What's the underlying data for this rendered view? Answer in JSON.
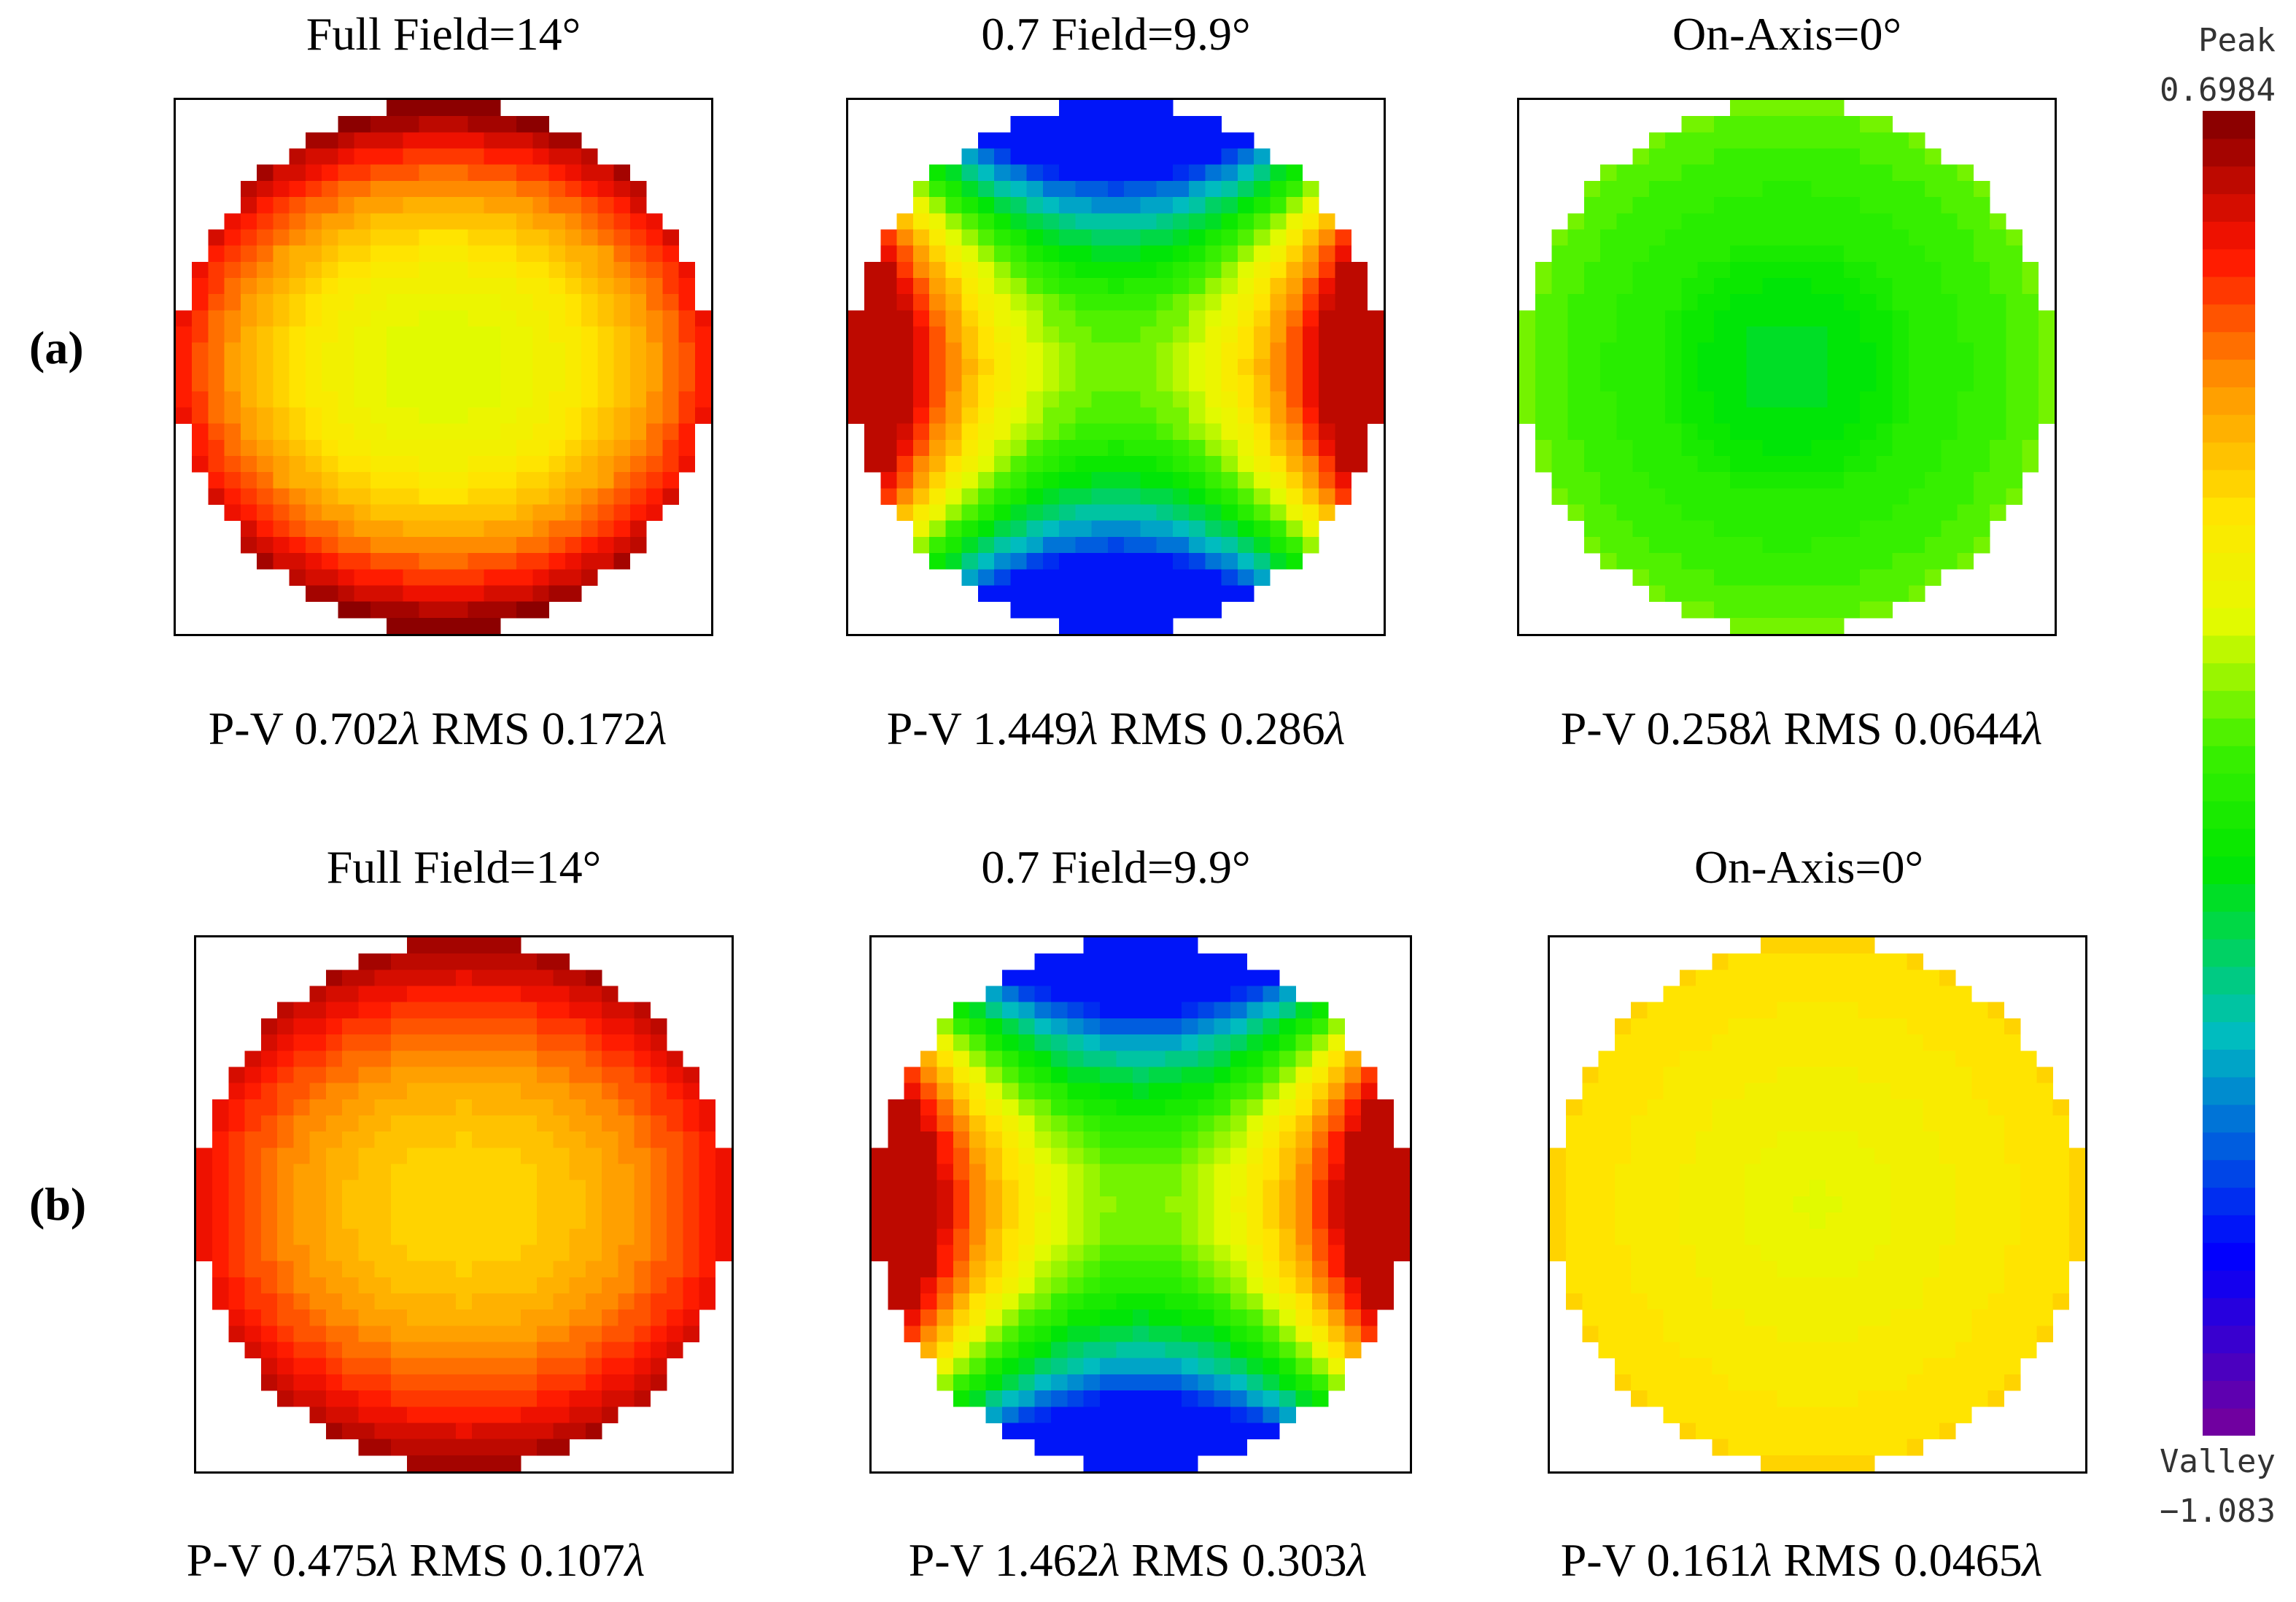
{
  "chart_data": {
    "type": "heatmap",
    "description_units": "wavefront error in waves",
    "colorbar": {
      "peak_label": "Peak",
      "peak_value": "0.6984",
      "valley_label": "Valley",
      "valley_value": "−1.083",
      "range": [
        -1.083,
        0.6984
      ]
    },
    "rows": [
      {
        "label": "(a)",
        "panels": [
          {
            "title": "Full Field=14°",
            "pv_label": "P-V",
            "pv": "0.702",
            "rms_label": "RMS",
            "rms": "0.172",
            "unit": "λ",
            "pattern": "full",
            "peak_wave": 0.702,
            "min_wave": 0.0
          },
          {
            "title": "0.7 Field=9.9°",
            "pv_label": "P-V",
            "pv": "1.449",
            "rms_label": "RMS",
            "rms": "0.286",
            "unit": "λ",
            "pattern": "mid",
            "peak_wave": 0.6,
            "min_wave": -0.849
          },
          {
            "title": "On-Axis=0°",
            "pv_label": "P-V",
            "pv": "0.258",
            "rms_label": "RMS",
            "rms": "0.0644",
            "unit": "λ",
            "pattern": "axis",
            "peak_wave": -0.1,
            "min_wave": -0.358
          }
        ]
      },
      {
        "label": "(b)",
        "panels": [
          {
            "title": "Full Field=14°",
            "pv_label": "P-V",
            "pv": "0.475",
            "rms_label": "RMS",
            "rms": "0.107",
            "unit": "λ",
            "pattern": "full",
            "peak_wave": 0.66,
            "min_wave": 0.185
          },
          {
            "title": "0.7 Field=9.9°",
            "pv_label": "P-V",
            "pv": "1.462",
            "rms_label": "RMS",
            "rms": "0.303",
            "unit": "λ",
            "pattern": "mid",
            "peak_wave": 0.62,
            "min_wave": -0.842
          },
          {
            "title": "On-Axis=0°",
            "pv_label": "P-V",
            "pv": "0.161",
            "rms_label": "RMS",
            "rms": "0.0465",
            "unit": "λ",
            "pattern": "axis2",
            "peak_wave": 0.18,
            "min_wave": 0.019
          }
        ]
      }
    ]
  }
}
